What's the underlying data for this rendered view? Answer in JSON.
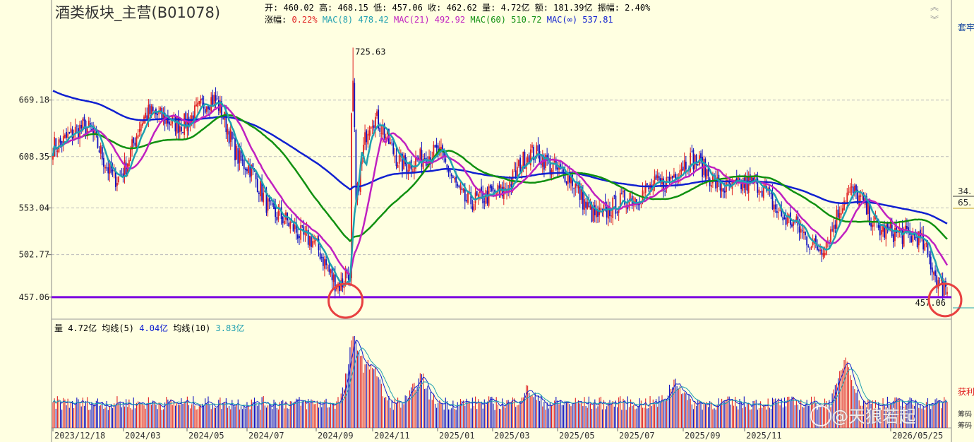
{
  "header": {
    "title": "酒类板块_主营(B01078)",
    "line1": [
      {
        "label": "开:",
        "value": "460.02"
      },
      {
        "label": "高:",
        "value": "468.15"
      },
      {
        "label": "低:",
        "value": "457.06"
      },
      {
        "label": "收:",
        "value": "462.62"
      },
      {
        "label": "量:",
        "value": "4.72亿"
      },
      {
        "label": "额:",
        "value": "181.39亿"
      },
      {
        "label": "振幅:",
        "value": "2.40%"
      }
    ],
    "line2": [
      {
        "text": "涨幅:",
        "color": "#000000"
      },
      {
        "text": "0.22%",
        "color": "#E02020"
      },
      {
        "text": "MAC(8)",
        "color": "#1FA0B0"
      },
      {
        "text": "478.42",
        "color": "#1FA0B0"
      },
      {
        "text": "MAC(21)",
        "color": "#C020C0"
      },
      {
        "text": "492.92",
        "color": "#C020C0"
      },
      {
        "text": "MAC(60)",
        "color": "#109010"
      },
      {
        "text": "510.72",
        "color": "#109010"
      },
      {
        "text": "MAC(∞)",
        "color": "#1020D0"
      },
      {
        "text": "537.81",
        "color": "#1020D0"
      }
    ]
  },
  "volume_header": [
    {
      "text": "量",
      "color": "#000000"
    },
    {
      "text": "4.72亿",
      "color": "#000000"
    },
    {
      "text": "均线(5)",
      "color": "#000000"
    },
    {
      "text": "4.04亿",
      "color": "#1020D0"
    },
    {
      "text": "均线(10)",
      "color": "#000000"
    },
    {
      "text": "3.83亿",
      "color": "#1FA0B0"
    }
  ],
  "side": {
    "top_label": "套牢",
    "price_labels": [
      "34.",
      "65."
    ],
    "bottom_label": "获利",
    "bottom_small": [
      "筹码",
      "筹码"
    ]
  },
  "watermark": "@天狼若起",
  "colors": {
    "background": "#FFFFE1",
    "up": "#E02020",
    "down": "#1010C0",
    "mac8": "#1FA0B0",
    "mac21": "#C020C0",
    "mac60": "#109010",
    "macinf": "#1020D0",
    "support_line": "#7A00E0",
    "circle": "#E84040"
  },
  "chart_data": {
    "type": "candlestick",
    "y_ticks": [
      "669.18",
      "608.35",
      "553.04",
      "502.77",
      "457.06"
    ],
    "ylim": [
      444,
      748
    ],
    "x_labels": [
      "2023/12/18",
      "2024/03",
      "2024/05",
      "2024/07",
      "2024/09",
      "2024/11",
      "2025/01",
      "2025/03",
      "2025/05",
      "2025/07",
      "2025/09",
      "2025/11",
      "2026/05/25"
    ],
    "grid": true,
    "high_annotation": {
      "value": "725.63",
      "date": "2024/09"
    },
    "low_annotation": {
      "value": "457.06",
      "date": "2026/05/25"
    },
    "support_line": 457.06,
    "trend_anchors": [
      {
        "x": "2023/12/18",
        "close": 620
      },
      {
        "x": "2024/01",
        "close": 640
      },
      {
        "x": "2024/02",
        "close": 585
      },
      {
        "x": "2024/03",
        "close": 655
      },
      {
        "x": "2024/04",
        "close": 643
      },
      {
        "x": "2024/05",
        "close": 670
      },
      {
        "x": "2024/06",
        "close": 600
      },
      {
        "x": "2024/07",
        "close": 545
      },
      {
        "x": "2024/08",
        "close": 520
      },
      {
        "x": "2024/09",
        "close": 470
      },
      {
        "x": "2024/10",
        "close": 650
      },
      {
        "x": "2024/11",
        "close": 600
      },
      {
        "x": "2024/12",
        "close": 612
      },
      {
        "x": "2025/01",
        "close": 560
      },
      {
        "x": "2025/02",
        "close": 570
      },
      {
        "x": "2025/03",
        "close": 612
      },
      {
        "x": "2025/04",
        "close": 590
      },
      {
        "x": "2025/05",
        "close": 545
      },
      {
        "x": "2025/06",
        "close": 562
      },
      {
        "x": "2025/07",
        "close": 578
      },
      {
        "x": "2025/08",
        "close": 605
      },
      {
        "x": "2025/09",
        "close": 575
      },
      {
        "x": "2025/10",
        "close": 580
      },
      {
        "x": "2025/11",
        "close": 540
      },
      {
        "x": "2025/12",
        "close": 510
      },
      {
        "x": "2026/01",
        "close": 570
      },
      {
        "x": "2026/02",
        "close": 528
      },
      {
        "x": "2026/03",
        "close": 522
      },
      {
        "x": "2026/05/25",
        "close": 462.62
      }
    ],
    "moving_averages": [
      {
        "name": "MAC(8)",
        "last": 478.42
      },
      {
        "name": "MAC(21)",
        "last": 492.92
      },
      {
        "name": "MAC(60)",
        "last": 510.72
      },
      {
        "name": "MAC(∞)",
        "last": 537.81
      }
    ],
    "volume": {
      "last": "4.72亿",
      "ma5": "4.04亿",
      "ma10": "3.83亿",
      "peak_dates": [
        "2024/09",
        "2024/11",
        "2025/01",
        "2025/08",
        "2025/12"
      ]
    }
  }
}
